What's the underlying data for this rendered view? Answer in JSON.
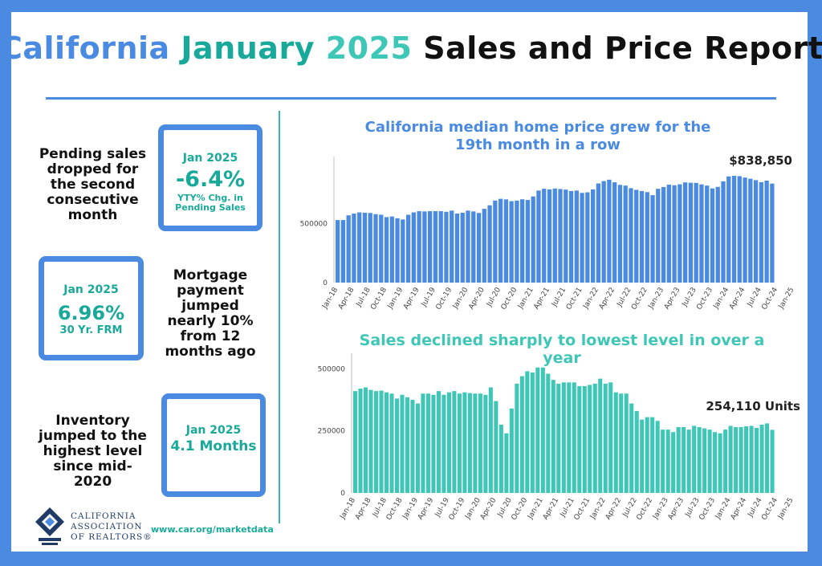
{
  "title": {
    "part1": "California",
    "part2": "January",
    "part3": "2025",
    "part4": "Sales and Price Report"
  },
  "colors": {
    "frame": "#4a8ae0",
    "teal": "#19a99a",
    "price_bar": "#4a8ae0",
    "sales_bar": "#3ec7b6"
  },
  "stats": {
    "pending": {
      "text": "Pending sales dropped for the second consecutive month",
      "date": "Jan 2025",
      "value": "-6.4%",
      "sub": "YTY% Chg. in Pending Sales"
    },
    "mortgage": {
      "text": "Mortgage payment jumped nearly 10% from 12 months ago",
      "date": "Jan 2025",
      "value": "6.96%",
      "sub": "30 Yr. FRM"
    },
    "inventory": {
      "text": "Inventory jumped to the highest level since mid-2020",
      "date": "Jan 2025",
      "value": "4.1 Months"
    }
  },
  "footer": {
    "org_line1": "CALIFORNIA",
    "org_line2": "ASSOCIATION",
    "org_line3": "OF REALTORS®",
    "url": "www.car.org/marketdata"
  },
  "chart_data": [
    {
      "type": "bar",
      "title": "California median home price grew for the 19th month in a row",
      "callout": "$838,850",
      "xlabel": "",
      "ylabel": "",
      "ylim": [
        0,
        1000000
      ],
      "yticks": [
        0,
        500000
      ],
      "x_tick_labels": [
        "Jan-18",
        "Apr-18",
        "Jul-18",
        "Oct-18",
        "Jan-19",
        "Apr-19",
        "Jul-19",
        "Oct-19",
        "Jan-20",
        "Apr-20",
        "Jul-20",
        "Oct-20",
        "Jan-21",
        "Apr-21",
        "Jul-21",
        "Oct-21",
        "Jan-22",
        "Apr-22",
        "Jul-22",
        "Oct-22",
        "Jan-23",
        "Apr-23",
        "Jul-23",
        "Oct-23",
        "Jan-24",
        "Apr-24",
        "Jul-24",
        "Oct-24",
        "Jan-25"
      ],
      "values": [
        530000,
        530000,
        570000,
        585000,
        595000,
        592000,
        590000,
        580000,
        575000,
        555000,
        560000,
        545000,
        535000,
        575000,
        595000,
        605000,
        603000,
        605000,
        605000,
        605000,
        600000,
        610000,
        585000,
        592000,
        610000,
        603000,
        590000,
        625000,
        655000,
        695000,
        710000,
        705000,
        690000,
        695000,
        706000,
        700000,
        730000,
        780000,
        795000,
        790000,
        797000,
        793000,
        788000,
        776000,
        780000,
        760000,
        765000,
        790000,
        840000,
        860000,
        872000,
        850000,
        828000,
        822000,
        800000,
        786000,
        776000,
        767000,
        741000,
        795000,
        810000,
        830000,
        825000,
        833000,
        849000,
        846000,
        845000,
        832000,
        822000,
        798000,
        811000,
        858000,
        900000,
        905000,
        902000,
        890000,
        880000,
        868000,
        851000,
        864000,
        838850
      ]
    },
    {
      "type": "bar",
      "title": "Sales declined sharply to lowest level in over a year",
      "callout": "254,110 Units",
      "xlabel": "",
      "ylabel": "",
      "ylim": [
        0,
        530000
      ],
      "yticks": [
        0,
        250000,
        500000
      ],
      "x_tick_labels": [
        "Jan-18",
        "Apr-18",
        "Jul-18",
        "Oct-18",
        "Jan-19",
        "Apr-19",
        "Jul-19",
        "Oct-19",
        "Jan-20",
        "Apr-20",
        "Jul-20",
        "Oct-20",
        "Jan-21",
        "Apr-21",
        "Jul-21",
        "Oct-21",
        "Jan-22",
        "Apr-22",
        "Jul-22",
        "Oct-22",
        "Jan-23",
        "Apr-23",
        "Jul-23",
        "Oct-23",
        "Jan-24",
        "Apr-24",
        "Jul-24",
        "Oct-24",
        "Jan-25"
      ],
      "values": [
        410000,
        420000,
        425000,
        415000,
        410000,
        412000,
        405000,
        400000,
        380000,
        395000,
        385000,
        375000,
        360000,
        400000,
        400000,
        395000,
        410000,
        395000,
        405000,
        410000,
        400000,
        405000,
        402000,
        400000,
        400000,
        395000,
        425000,
        370000,
        275000,
        240000,
        340000,
        440000,
        470000,
        490000,
        485000,
        505000,
        505000,
        480000,
        455000,
        440000,
        445000,
        445000,
        445000,
        430000,
        430000,
        435000,
        440000,
        460000,
        440000,
        445000,
        405000,
        400000,
        400000,
        360000,
        330000,
        295000,
        305000,
        305000,
        290000,
        255000,
        255000,
        245000,
        265000,
        265000,
        255000,
        270000,
        265000,
        260000,
        255000,
        245000,
        240000,
        255000,
        270000,
        265000,
        265000,
        268000,
        270000,
        262000,
        275000,
        280000,
        254110
      ]
    }
  ]
}
